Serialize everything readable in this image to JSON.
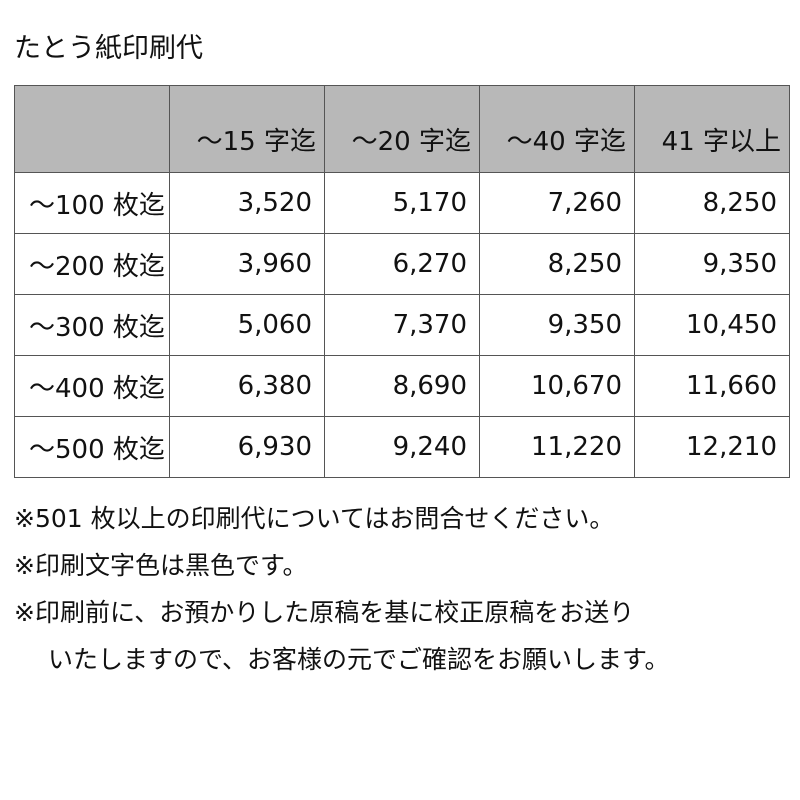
{
  "title": "たとう紙印刷代",
  "table": {
    "headers": [
      "",
      "～15 字迄",
      "～20 字迄",
      "～40 字迄",
      "41 字以上"
    ],
    "rows": [
      {
        "label": "～100 枚迄",
        "values": [
          "3,520",
          "5,170",
          "7,260",
          "8,250"
        ]
      },
      {
        "label": "～200 枚迄",
        "values": [
          "3,960",
          "6,270",
          "8,250",
          "9,350"
        ]
      },
      {
        "label": "～300 枚迄",
        "values": [
          "5,060",
          "7,370",
          "9,350",
          "10,450"
        ]
      },
      {
        "label": "～400 枚迄",
        "values": [
          "6,380",
          "8,690",
          "10,670",
          "11,660"
        ]
      },
      {
        "label": "～500 枚迄",
        "values": [
          "6,930",
          "9,240",
          "11,220",
          "12,210"
        ]
      }
    ]
  },
  "notes": [
    "※501 枚以上の印刷代についてはお問合せください。",
    "※印刷文字色は黒色です。",
    "※印刷前に、お預かりした原稿を基に校正原稿をお送り",
    "いたしますので、お客様の元でご確認をお願いします。"
  ],
  "colors": {
    "header_bg": "#b8b8b8",
    "border": "#555555"
  }
}
